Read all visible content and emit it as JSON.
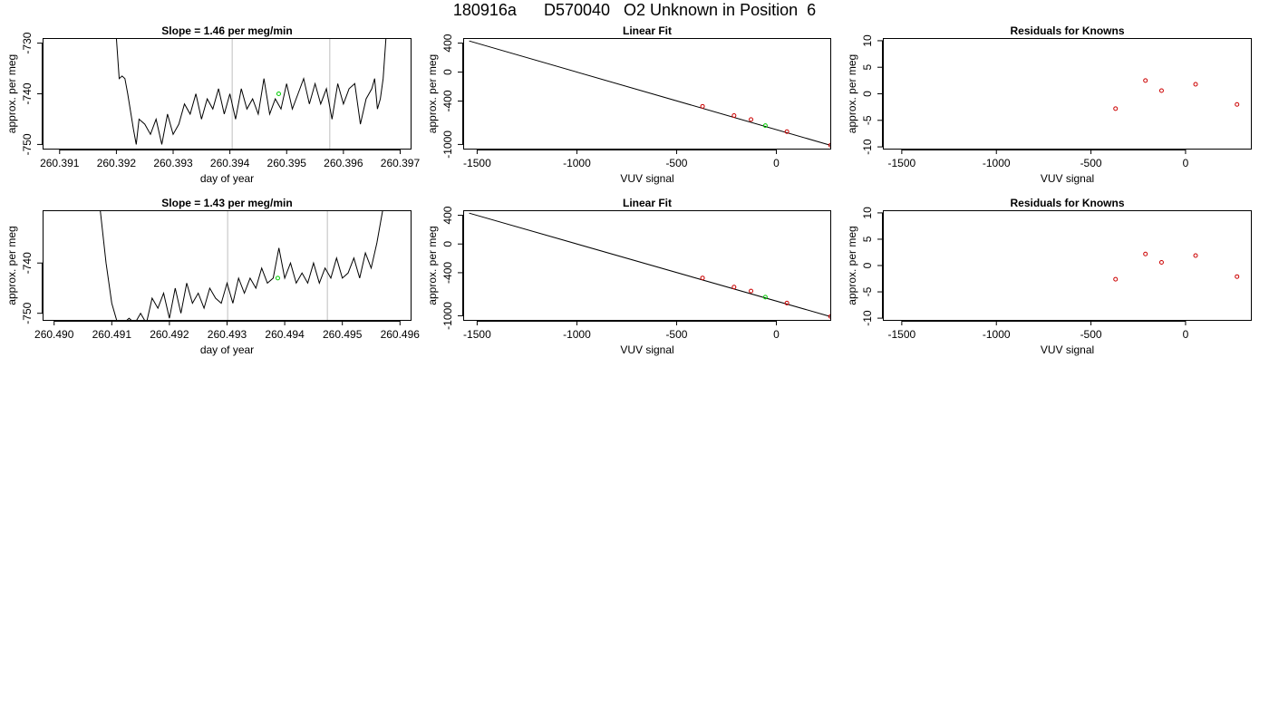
{
  "title": "180916a      D570040   O2 Unknown in Position  6",
  "colors": {
    "line": "#000000",
    "known": "#cc0000",
    "unknown": "#00cc00",
    "vline": "#bebebe"
  },
  "chart_data": [
    {
      "type": "line",
      "title": "Slope =  1.46  per meg/min",
      "xlabel": "day of year",
      "ylabel": "approx. per meg",
      "xlim": [
        260.3907,
        260.3972
      ],
      "ylim": [
        -751.0,
        -729.0
      ],
      "xticks": [
        260.391,
        260.392,
        260.393,
        260.394,
        260.395,
        260.396,
        260.397
      ],
      "xtick_labels": [
        "260.391",
        "260.392",
        "260.393",
        "260.394",
        "260.395",
        "260.396",
        "260.397"
      ],
      "yticks": [
        -750,
        -740,
        -730
      ],
      "ytick_labels": [
        "-750",
        "-740",
        "-730"
      ],
      "vlines": [
        260.39404,
        260.39576
      ],
      "unknown_point": [
        260.39486,
        -740.0
      ],
      "series": [
        {
          "x": [
            260.392,
            260.39205,
            260.3921,
            260.39215,
            260.3922,
            260.3923,
            260.39235,
            260.3924,
            260.3925,
            260.3926,
            260.3927,
            260.3928,
            260.3929,
            260.393,
            260.3931,
            260.3932,
            260.3933,
            260.3934,
            260.3935,
            260.3936,
            260.3937,
            260.3938,
            260.3939,
            260.394,
            260.3941,
            260.3942,
            260.3943,
            260.3944,
            260.3945,
            260.3946,
            260.3947,
            260.3948,
            260.3949,
            260.395,
            260.3951,
            260.3952,
            260.3953,
            260.3954,
            260.3955,
            260.3956,
            260.3957,
            260.3958,
            260.3959,
            260.396,
            260.3961,
            260.3962,
            260.3963,
            260.3964,
            260.3965,
            260.39655,
            260.3966,
            260.39665,
            260.3967,
            260.39675
          ],
          "y": [
            -729,
            -737,
            -736.5,
            -737,
            -740,
            -747,
            -750,
            -745,
            -746,
            -748,
            -745,
            -750,
            -744,
            -748,
            -746,
            -742,
            -744,
            -740,
            -745,
            -741,
            -743,
            -739,
            -744,
            -740,
            -745,
            -739,
            -743,
            -741,
            -744,
            -737,
            -744,
            -741,
            -743,
            -738,
            -743,
            -740,
            -737,
            -742,
            -738,
            -742,
            -739,
            -745,
            -738,
            -742,
            -739,
            -738,
            -746,
            -741,
            -739,
            -737,
            -743,
            -741,
            -737,
            -729
          ]
        }
      ]
    },
    {
      "type": "scatter",
      "title": "Linear Fit",
      "xlabel": "VUV signal",
      "ylabel": "approx. per meg",
      "xlim": [
        -1570,
        275
      ],
      "ylim": [
        -1070,
        470
      ],
      "xticks": [
        -1500,
        -1000,
        -500,
        0
      ],
      "xtick_labels": [
        "-1500",
        "-1000",
        "-500",
        "0"
      ],
      "yticks": [
        400,
        0,
        -400,
        -1000
      ],
      "ytick_labels": [
        "400",
        "0",
        "-400",
        "-1000"
      ],
      "fit_line": {
        "x": [
          -1540,
          270
        ],
        "y": [
          430,
          -1010
        ]
      },
      "known_points": {
        "x": [
          -370,
          -212,
          -127,
          53,
          272
        ],
        "y": [
          -473,
          -600,
          -655,
          -823,
          -1010
        ]
      },
      "unknown_point": [
        -55,
        -740
      ]
    },
    {
      "type": "scatter",
      "title": "Residuals for Knowns",
      "xlabel": "VUV signal",
      "ylabel": "approx. per meg",
      "xlim": [
        -1600,
        350
      ],
      "ylim": [
        -10.5,
        10.5
      ],
      "xticks": [
        -1500,
        -1000,
        -500,
        0
      ],
      "xtick_labels": [
        "-1500",
        "-1000",
        "-500",
        "0"
      ],
      "yticks": [
        -10,
        -5,
        0,
        5,
        10
      ],
      "ytick_labels": [
        "-10",
        "-5",
        "0",
        "5",
        "10"
      ],
      "points": {
        "x": [
          -370,
          -212,
          -127,
          53,
          272
        ],
        "y": [
          -2.8,
          2.5,
          0.6,
          1.8,
          -2.0
        ]
      }
    },
    {
      "type": "line",
      "title": "Slope =  1.43  per meg/min",
      "xlabel": "day of year",
      "ylabel": "approx. per meg",
      "xlim": [
        260.4898,
        260.4962
      ],
      "ylim": [
        -751.5,
        -729.5
      ],
      "xticks": [
        260.49,
        260.491,
        260.492,
        260.493,
        260.494,
        260.495,
        260.496
      ],
      "xtick_labels": [
        "260.490",
        "260.491",
        "260.492",
        "260.493",
        "260.494",
        "260.495",
        "260.496"
      ],
      "yticks": [
        -750,
        -740
      ],
      "ytick_labels": [
        "-750",
        "-740"
      ],
      "vlines": [
        260.49301,
        260.49474
      ],
      "unknown_point": [
        260.49388,
        -743.0
      ],
      "series": [
        {
          "x": [
            260.4908,
            260.4909,
            260.491,
            260.4911,
            260.4912,
            260.4913,
            260.4914,
            260.4915,
            260.4916,
            260.4917,
            260.4918,
            260.4919,
            260.492,
            260.4921,
            260.4922,
            260.4923,
            260.4924,
            260.4925,
            260.4926,
            260.4927,
            260.4928,
            260.4929,
            260.493,
            260.4931,
            260.4932,
            260.4933,
            260.4934,
            260.4935,
            260.4936,
            260.4937,
            260.4938,
            260.4939,
            260.494,
            260.4941,
            260.4942,
            260.4943,
            260.4944,
            260.4945,
            260.4946,
            260.4947,
            260.4948,
            260.4949,
            260.495,
            260.4951,
            260.4952,
            260.4953,
            260.4954,
            260.4955,
            260.4956,
            260.4957
          ],
          "y": [
            -729.5,
            -740,
            -748,
            -752,
            -752,
            -751,
            -752,
            -750,
            -752,
            -747,
            -749,
            -746,
            -751,
            -745,
            -750,
            -744,
            -748,
            -746,
            -749,
            -745,
            -747,
            -748,
            -744,
            -748,
            -743,
            -746,
            -743,
            -745,
            -741,
            -744,
            -743,
            -737,
            -743,
            -740,
            -744,
            -742,
            -744,
            -740,
            -744,
            -741,
            -743,
            -739,
            -743,
            -742,
            -739,
            -743,
            -738,
            -741,
            -736,
            -729.5
          ]
        }
      ]
    },
    {
      "type": "scatter",
      "title": "Linear Fit",
      "xlabel": "VUV signal",
      "ylabel": "approx. per meg",
      "xlim": [
        -1570,
        275
      ],
      "ylim": [
        -1070,
        470
      ],
      "xticks": [
        -1500,
        -1000,
        -500,
        0
      ],
      "xtick_labels": [
        "-1500",
        "-1000",
        "-500",
        "0"
      ],
      "yticks": [
        400,
        0,
        -400,
        -1000
      ],
      "ytick_labels": [
        "400",
        "0",
        "-400",
        "-1000"
      ],
      "fit_line": {
        "x": [
          -1540,
          270
        ],
        "y": [
          430,
          -1010
        ]
      },
      "known_points": {
        "x": [
          -370,
          -212,
          -127,
          53,
          272
        ],
        "y": [
          -473,
          -600,
          -655,
          -823,
          -1010
        ]
      },
      "unknown_point": [
        -55,
        -740
      ]
    },
    {
      "type": "scatter",
      "title": "Residuals for Knowns",
      "xlabel": "VUV signal",
      "ylabel": "approx. per meg",
      "xlim": [
        -1600,
        350
      ],
      "ylim": [
        -10.5,
        10.5
      ],
      "xticks": [
        -1500,
        -1000,
        -500,
        0
      ],
      "xtick_labels": [
        "-1500",
        "-1000",
        "-500",
        "0"
      ],
      "yticks": [
        -10,
        -5,
        0,
        5,
        10
      ],
      "ytick_labels": [
        "-10",
        "-5",
        "0",
        "5",
        "10"
      ],
      "points": {
        "x": [
          -370,
          -212,
          -127,
          53,
          272
        ],
        "y": [
          -2.6,
          2.2,
          0.6,
          1.9,
          -2.1
        ]
      }
    }
  ]
}
